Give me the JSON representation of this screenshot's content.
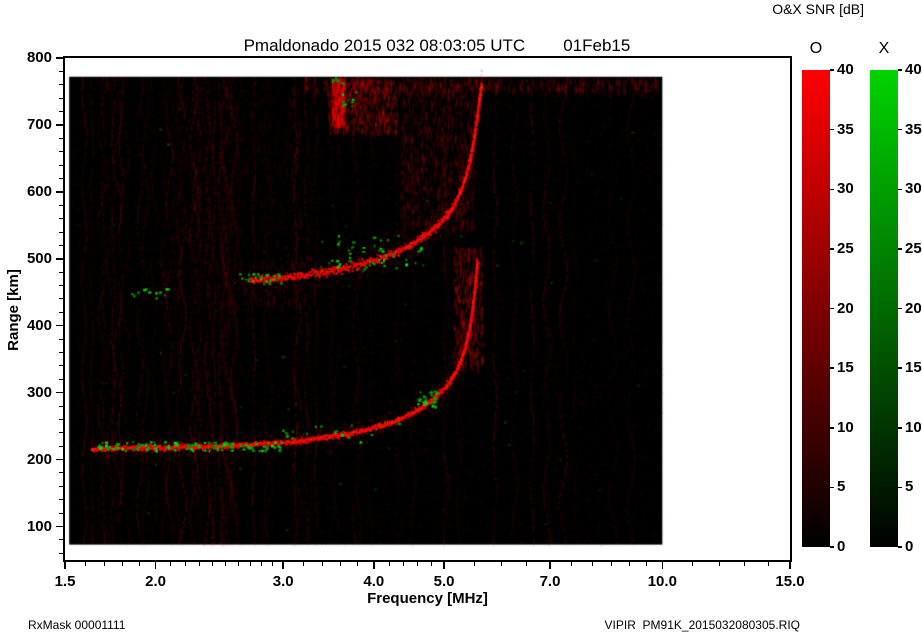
{
  "header": {
    "title": "Pmaldonado 2015 032 08:03:05 UTC",
    "date": "01Feb15"
  },
  "footer": {
    "left": "RxMask 00001111",
    "right": "VIPIR  PM91K_2015032080305.RIQ"
  },
  "colorbar": {
    "title": "O&X SNR [dB]",
    "min": 0,
    "max": 40,
    "ticks": [
      0,
      5,
      10,
      15,
      20,
      25,
      30,
      35,
      40
    ],
    "bars": [
      {
        "label": "O",
        "top_color": "#ff0000",
        "bottom_color": "#000000"
      },
      {
        "label": "X",
        "top_color": "#00d400",
        "bottom_color": "#000000"
      }
    ]
  },
  "chart_data": {
    "type": "heatmap",
    "title": "Pmaldonado 2015 032 08:03:05 UTC 01Feb15",
    "xlabel": "Frequency [MHz]",
    "ylabel": "Range [km]",
    "x_scale": "log",
    "x_range": [
      1.5,
      15.0
    ],
    "y_range": [
      50,
      800
    ],
    "x_major_ticks": [
      1.5,
      2.0,
      3.0,
      4.0,
      5.0,
      7.0,
      10.0,
      15.0
    ],
    "x_major_labels": [
      "1.5",
      "2.0",
      "3.0",
      "4.0",
      "5.0",
      "7.0",
      "10.0",
      "15.0"
    ],
    "y_major_ticks": [
      100,
      200,
      300,
      400,
      500,
      600,
      700,
      800
    ],
    "snr_range": [
      0,
      40
    ],
    "o_mode_color": "#ff0000",
    "x_mode_color": "#00cc00",
    "background_color": "#000000",
    "data_extent": {
      "f": [
        1.52,
        10.0
      ],
      "r": [
        73,
        772
      ]
    },
    "traces": [
      {
        "name": "F-region first-hop echo (O-mode)",
        "mode": "O",
        "core_km": 9,
        "spread_km": 22,
        "points": [
          [
            1.63,
            217
          ],
          [
            1.8,
            218
          ],
          [
            2.0,
            219
          ],
          [
            2.2,
            220
          ],
          [
            2.4,
            221
          ],
          [
            2.6,
            223
          ],
          [
            2.8,
            225
          ],
          [
            3.0,
            227
          ],
          [
            3.2,
            230
          ],
          [
            3.4,
            234
          ],
          [
            3.6,
            238
          ],
          [
            3.8,
            243
          ],
          [
            4.0,
            249
          ],
          [
            4.2,
            256
          ],
          [
            4.4,
            265
          ],
          [
            4.6,
            276
          ],
          [
            4.8,
            290
          ],
          [
            5.0,
            308
          ],
          [
            5.1,
            320
          ],
          [
            5.2,
            336
          ],
          [
            5.3,
            358
          ],
          [
            5.35,
            372
          ],
          [
            5.4,
            392
          ],
          [
            5.45,
            418
          ],
          [
            5.5,
            452
          ],
          [
            5.53,
            480
          ],
          [
            5.55,
            500
          ]
        ]
      },
      {
        "name": "F-region second-hop echo (O-mode)",
        "mode": "O",
        "core_km": 13,
        "spread_km": 45,
        "points": [
          [
            2.7,
            469
          ],
          [
            2.8,
            470
          ],
          [
            3.0,
            473
          ],
          [
            3.2,
            477
          ],
          [
            3.4,
            481
          ],
          [
            3.6,
            486
          ],
          [
            3.8,
            492
          ],
          [
            4.0,
            499
          ],
          [
            4.2,
            507
          ],
          [
            4.4,
            517
          ],
          [
            4.6,
            529
          ],
          [
            4.8,
            544
          ],
          [
            5.0,
            562
          ],
          [
            5.1,
            574
          ],
          [
            5.2,
            590
          ],
          [
            5.3,
            612
          ],
          [
            5.4,
            642
          ],
          [
            5.45,
            662
          ],
          [
            5.5,
            688
          ],
          [
            5.55,
            718
          ],
          [
            5.6,
            748
          ],
          [
            5.62,
            762
          ]
        ]
      }
    ],
    "x_mode_speckle_clusters": [
      {
        "f": [
          1.66,
          3.0
        ],
        "r": [
          213,
          226
        ],
        "count": 140
      },
      {
        "f": [
          2.6,
          3.02
        ],
        "r": [
          462,
          478
        ],
        "count": 26
      },
      {
        "f": [
          1.85,
          2.12
        ],
        "r": [
          438,
          455
        ],
        "count": 14
      },
      {
        "f": [
          3.35,
          4.7
        ],
        "r": [
          480,
          535
        ],
        "count": 55
      },
      {
        "f": [
          4.6,
          4.9
        ],
        "r": [
          278,
          302
        ],
        "count": 32
      },
      {
        "f": [
          3.62,
          3.8
        ],
        "r": [
          726,
          752
        ],
        "count": 10
      },
      {
        "f": [
          3.5,
          3.62
        ],
        "r": [
          752,
          770
        ],
        "count": 6
      },
      {
        "f": [
          2.95,
          4.35
        ],
        "r": [
          226,
          258
        ],
        "count": 18
      },
      {
        "f": [
          1.6,
          9.7
        ],
        "r": [
          80,
          770
        ],
        "count": 60,
        "faint": true
      }
    ],
    "diffuse_regions": [
      {
        "f": [
          3.45,
          4.3
        ],
        "r": [
          690,
          772
        ],
        "alpha": 0.26,
        "count": 650
      },
      {
        "f": [
          3.5,
          3.64
        ],
        "r": [
          700,
          772
        ],
        "alpha": 0.5,
        "count": 220
      },
      {
        "f": [
          4.35,
          5.5
        ],
        "r": [
          545,
          772
        ],
        "alpha": 0.18,
        "count": 900
      },
      {
        "f": [
          5.15,
          5.65
        ],
        "r": [
          340,
          520
        ],
        "alpha": 0.3,
        "count": 420
      },
      {
        "f": [
          3.2,
          9.9
        ],
        "r": [
          752,
          772
        ],
        "alpha": 0.22,
        "count": 450
      },
      {
        "f": [
          2.0,
          3.4
        ],
        "r": [
          428,
          500
        ],
        "alpha": 0.12,
        "count": 260
      },
      {
        "f": [
          2.1,
          3.2
        ],
        "r": [
          520,
          772
        ],
        "alpha": 0.1,
        "count": 500
      }
    ],
    "noise": {
      "speckle_count": 5000,
      "stripe_count": 70
    }
  }
}
